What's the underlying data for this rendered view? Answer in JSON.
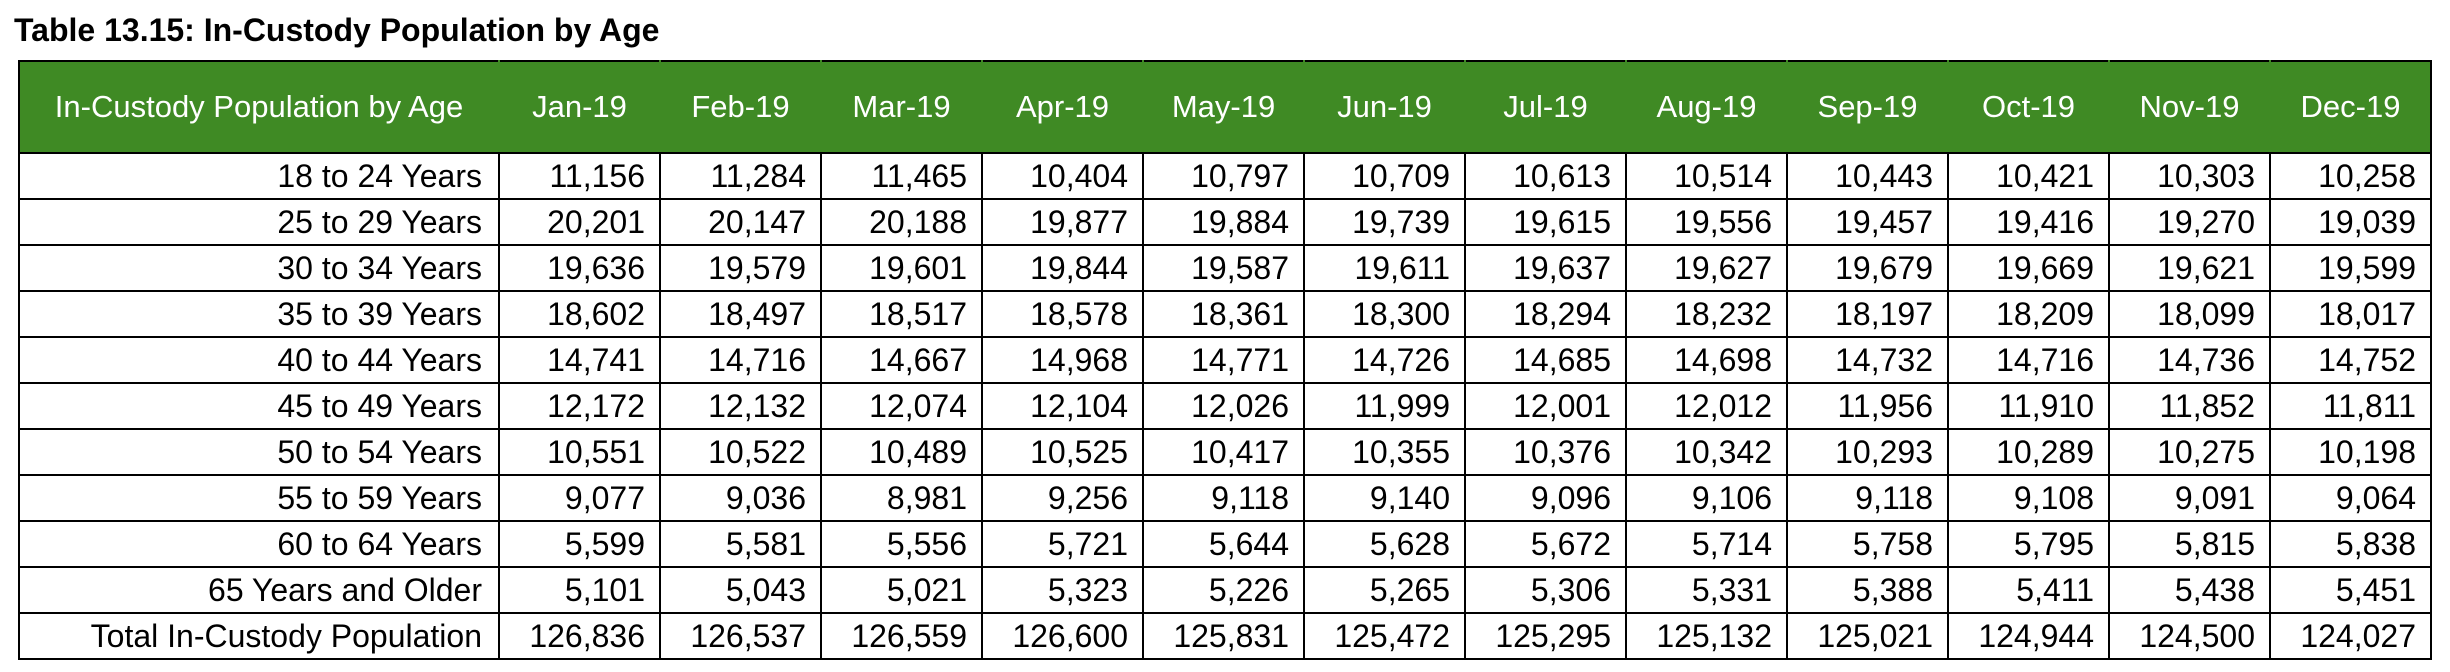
{
  "title": "Table 13.15: In-Custody Population by Age",
  "colors": {
    "header_background": "#3f8a24",
    "header_text": "#ffffff",
    "border": "#000000"
  },
  "table": {
    "corner_header": "In-Custody Population by Age",
    "months": [
      "Jan-19",
      "Feb-19",
      "Mar-19",
      "Apr-19",
      "May-19",
      "Jun-19",
      "Jul-19",
      "Aug-19",
      "Sep-19",
      "Oct-19",
      "Nov-19",
      "Dec-19"
    ],
    "rows": [
      {
        "label": "18 to 24 Years",
        "values": [
          "11,156",
          "11,284",
          "11,465",
          "10,404",
          "10,797",
          "10,709",
          "10,613",
          "10,514",
          "10,443",
          "10,421",
          "10,303",
          "10,258"
        ]
      },
      {
        "label": "25 to 29 Years",
        "values": [
          "20,201",
          "20,147",
          "20,188",
          "19,877",
          "19,884",
          "19,739",
          "19,615",
          "19,556",
          "19,457",
          "19,416",
          "19,270",
          "19,039"
        ]
      },
      {
        "label": "30 to 34 Years",
        "values": [
          "19,636",
          "19,579",
          "19,601",
          "19,844",
          "19,587",
          "19,611",
          "19,637",
          "19,627",
          "19,679",
          "19,669",
          "19,621",
          "19,599"
        ]
      },
      {
        "label": "35 to 39 Years",
        "values": [
          "18,602",
          "18,497",
          "18,517",
          "18,578",
          "18,361",
          "18,300",
          "18,294",
          "18,232",
          "18,197",
          "18,209",
          "18,099",
          "18,017"
        ]
      },
      {
        "label": "40 to 44 Years",
        "values": [
          "14,741",
          "14,716",
          "14,667",
          "14,968",
          "14,771",
          "14,726",
          "14,685",
          "14,698",
          "14,732",
          "14,716",
          "14,736",
          "14,752"
        ]
      },
      {
        "label": "45 to 49 Years",
        "values": [
          "12,172",
          "12,132",
          "12,074",
          "12,104",
          "12,026",
          "11,999",
          "12,001",
          "12,012",
          "11,956",
          "11,910",
          "11,852",
          "11,811"
        ]
      },
      {
        "label": "50 to 54 Years",
        "values": [
          "10,551",
          "10,522",
          "10,489",
          "10,525",
          "10,417",
          "10,355",
          "10,376",
          "10,342",
          "10,293",
          "10,289",
          "10,275",
          "10,198"
        ]
      },
      {
        "label": "55 to 59 Years",
        "values": [
          "9,077",
          "9,036",
          "8,981",
          "9,256",
          "9,118",
          "9,140",
          "9,096",
          "9,106",
          "9,118",
          "9,108",
          "9,091",
          "9,064"
        ]
      },
      {
        "label": "60 to 64 Years",
        "values": [
          "5,599",
          "5,581",
          "5,556",
          "5,721",
          "5,644",
          "5,628",
          "5,672",
          "5,714",
          "5,758",
          "5,795",
          "5,815",
          "5,838"
        ]
      },
      {
        "label": "65 Years and Older",
        "values": [
          "5,101",
          "5,043",
          "5,021",
          "5,323",
          "5,226",
          "5,265",
          "5,306",
          "5,331",
          "5,388",
          "5,411",
          "5,438",
          "5,451"
        ]
      },
      {
        "label": "Total In-Custody Population",
        "values": [
          "126,836",
          "126,537",
          "126,559",
          "126,600",
          "125,831",
          "125,472",
          "125,295",
          "125,132",
          "125,021",
          "124,944",
          "124,500",
          "124,027"
        ]
      }
    ]
  }
}
